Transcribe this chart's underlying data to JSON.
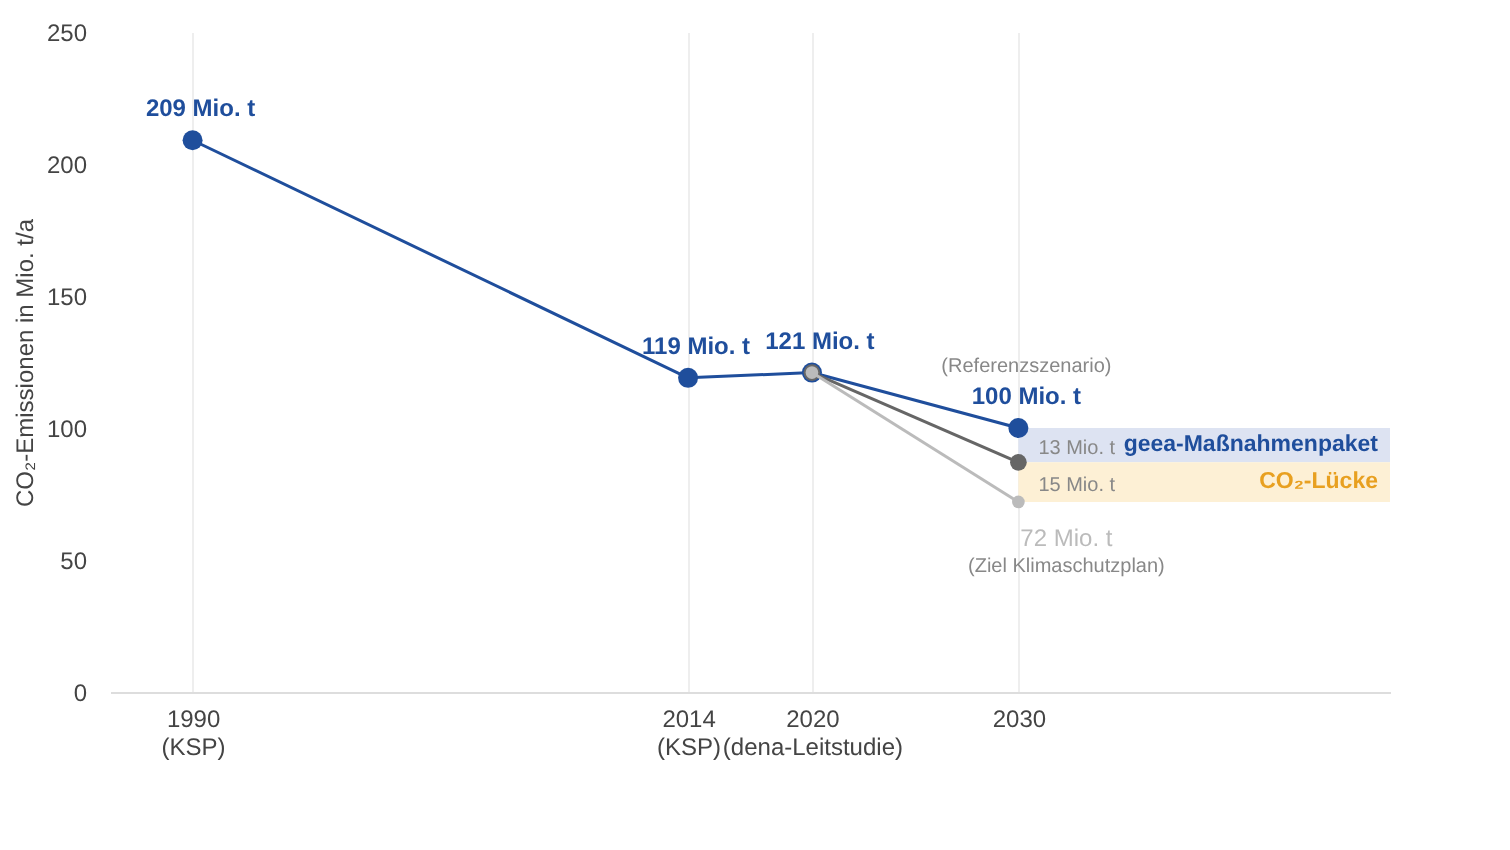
{
  "chart_data": {
    "type": "line",
    "ylabel": "CO₂-Emissionen in Mio. t/a",
    "xlim": [
      1986,
      2048
    ],
    "ylim": [
      0,
      250
    ],
    "xticks": [
      {
        "value": 1990,
        "label": "1990\n(KSP)"
      },
      {
        "value": 2014,
        "label": "2014\n(KSP)"
      },
      {
        "value": 2020,
        "label": "2020\n(dena-Leitstudie)"
      },
      {
        "value": 2030,
        "label": "2030"
      }
    ],
    "yticks": [
      0,
      50,
      100,
      150,
      200,
      250
    ],
    "grid": "x",
    "marker": "circle",
    "line_style": "solid",
    "series": [
      {
        "color": "#1f4e9c",
        "x": [
          1990,
          2014,
          2020,
          2030
        ],
        "values": [
          209,
          119,
          121,
          100
        ],
        "value_labels": [
          "209 Mio. t",
          "119 Mio. t",
          "121 Mio. t",
          "100 Mio. t"
        ]
      },
      {
        "color": "#666666",
        "x": [
          2020,
          2030
        ],
        "values": [
          121,
          87
        ]
      },
      {
        "color": "#bbbbbb",
        "x": [
          2020,
          2030
        ],
        "values": [
          121,
          72
        ],
        "value_labels": [
          null,
          "72 Mio. t"
        ]
      }
    ],
    "bands": [
      {
        "axis": "y",
        "from": 87,
        "to": 100,
        "label": "geea-Maßnahmenpaket",
        "color": "#dde3f2"
      },
      {
        "axis": "y",
        "from": 72,
        "to": 87,
        "label": "CO₂-Lücke",
        "color": "#fdf0d5"
      }
    ],
    "annotations": [
      "(Referenzszenario)",
      "13 Mio. t",
      "15 Mio. t",
      "(Ziel Klimaschutzplan)"
    ]
  }
}
